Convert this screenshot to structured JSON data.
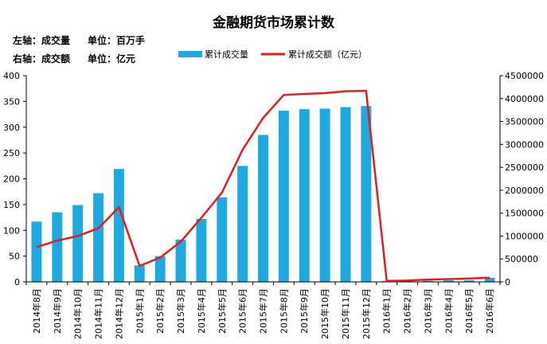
{
  "chart_data": {
    "type": "bar",
    "title": "金融期货市场累计数",
    "notes": {
      "left_axis": "左轴：成交量",
      "left_unit": "单位：百万手",
      "right_axis": "右轴：成交额",
      "right_unit": "单位：亿元"
    },
    "categories": [
      "2014年8月",
      "2014年9月",
      "2014年10月",
      "2014年11月",
      "2014年12月",
      "2015年1月",
      "2015年2月",
      "2015年3月",
      "2015年4月",
      "2015年5月",
      "2015年6月",
      "2015年7月",
      "2015年8月",
      "2015年9月",
      "2015年10月",
      "2015年11月",
      "2015年12月",
      "2016年1月",
      "2016年2月",
      "2016年3月",
      "2016年4月",
      "2016年5月",
      "2016年6月"
    ],
    "series": [
      {
        "name": "累计成交量",
        "type": "bar",
        "axis": "left",
        "color": "#1EA9E1",
        "values": [
          117,
          135,
          149,
          172,
          219,
          32,
          50,
          82,
          122,
          164,
          225,
          285,
          332,
          335,
          336,
          339,
          341,
          2,
          2,
          2,
          3,
          3,
          8
        ]
      },
      {
        "name": "累计成交额（亿元）",
        "type": "line",
        "axis": "right",
        "color": "#E01E1E",
        "values": [
          760000,
          900000,
          1000000,
          1170000,
          1630000,
          350000,
          530000,
          880000,
          1400000,
          1950000,
          2880000,
          3580000,
          4080000,
          4100000,
          4120000,
          4160000,
          4170000,
          20000,
          30000,
          50000,
          60000,
          75000,
          90000
        ]
      }
    ],
    "y_left": {
      "min": 0,
      "max": 400,
      "ticks": [
        0,
        50,
        100,
        150,
        200,
        250,
        300,
        350,
        400
      ]
    },
    "y_right": {
      "min": 0,
      "max": 4500000,
      "ticks": [
        0,
        500000,
        1000000,
        1500000,
        2000000,
        2500000,
        3000000,
        3500000,
        4000000,
        4500000
      ]
    },
    "grid": false,
    "legend_position": "top"
  }
}
